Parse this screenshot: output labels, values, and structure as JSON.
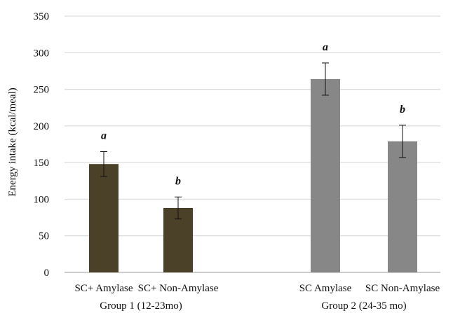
{
  "chart_data": {
    "type": "bar",
    "title": "",
    "xlabel": "",
    "ylabel": "Energy intake (kcal/meal)",
    "ylim": [
      0,
      350
    ],
    "yticks": [
      0,
      50,
      100,
      150,
      200,
      250,
      300,
      350
    ],
    "grid": true,
    "legend": "none",
    "bars": [
      {
        "category": "SC+ Amylase",
        "group": "Group 1 (12-23mo)",
        "value": 148,
        "error": 17,
        "label": "a",
        "color": "#4a4128"
      },
      {
        "category": "SC+ Non-Amylase",
        "group": "Group 1 (12-23mo)",
        "value": 88,
        "error": 15,
        "label": "b",
        "color": "#4a4128"
      },
      {
        "category": "SC Amylase",
        "group": "Group 2 (24-35 mo)",
        "value": 264,
        "error": 22,
        "label": "a",
        "color": "#878787"
      },
      {
        "category": "SC Non-Amylase",
        "group": "Group 2 (24-35 mo)",
        "value": 179,
        "error": 22,
        "label": "b",
        "color": "#878787"
      }
    ],
    "groups": [
      "Group 1 (12-23mo)",
      "Group 2 (24-35 mo)"
    ]
  },
  "colors": {
    "grid": "#d4d4d4",
    "axis": "#9a9a9a",
    "error_bar": "#111111"
  }
}
